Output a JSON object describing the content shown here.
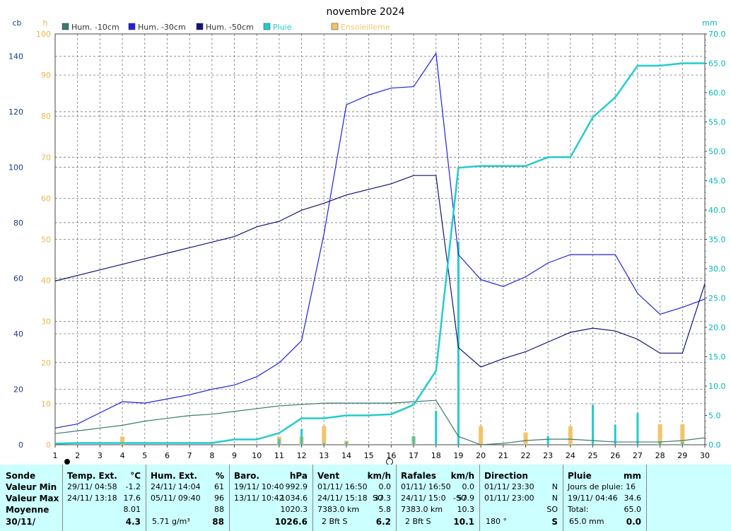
{
  "chart_data": {
    "type": "line",
    "title": "novembre 2024",
    "axes": {
      "left_outer": {
        "label": "cb",
        "min": 0,
        "max": 148,
        "ticks": [
          0,
          20,
          40,
          60,
          80,
          100,
          120,
          140
        ],
        "color": "#1a3a8a"
      },
      "left_inner": {
        "label": "h",
        "min": 0,
        "max": 100,
        "ticks": [
          0,
          10,
          20,
          30,
          40,
          50,
          60,
          70,
          80,
          90,
          100
        ],
        "color": "#e8b84a"
      },
      "right": {
        "label": "mm",
        "min": 0,
        "max": 70,
        "ticks": [
          0.0,
          5.0,
          10.0,
          15.0,
          20.0,
          25.0,
          30.0,
          35.0,
          40.0,
          45.0,
          50.0,
          55.0,
          60.0,
          65.0,
          70.0
        ],
        "color": "#00b8b8"
      },
      "x": {
        "min": 1,
        "max": 30,
        "ticks": [
          1,
          2,
          3,
          4,
          5,
          6,
          7,
          8,
          9,
          10,
          11,
          12,
          13,
          14,
          15,
          16,
          17,
          18,
          19,
          20,
          21,
          22,
          23,
          24,
          25,
          26,
          27,
          28,
          29,
          30
        ]
      }
    },
    "grid": true,
    "legend": [
      {
        "name": "Hum. -10cm",
        "color": "#3a7a70"
      },
      {
        "name": "Hum. -30cm",
        "color": "#2222dd"
      },
      {
        "name": "Hum. -50cm",
        "color": "#12127a"
      },
      {
        "name": "Pluie",
        "color": "#22cccc"
      },
      {
        "name": "Ensoleilleme",
        "color": "#f2c46a"
      }
    ],
    "series": [
      {
        "name": "Hum. -10cm",
        "axis": "left_outer",
        "color": "#3a7a70",
        "x": [
          1,
          2,
          3,
          4,
          5,
          6,
          7,
          8,
          9,
          10,
          11,
          12,
          13,
          14,
          15,
          16,
          17,
          18,
          19,
          20,
          21,
          22,
          23,
          24,
          25,
          26,
          27,
          28,
          29,
          30
        ],
        "values": [
          4,
          5,
          6,
          7,
          8.5,
          9.5,
          10.5,
          11,
          12,
          13,
          14,
          14.5,
          15,
          15,
          15,
          15,
          15.5,
          16,
          3,
          0,
          0.5,
          1.5,
          2,
          2,
          1.5,
          1,
          1,
          1,
          1.5,
          2.5
        ]
      },
      {
        "name": "Hum. -30cm",
        "axis": "left_outer",
        "color": "#2222dd",
        "x": [
          1,
          2,
          3,
          4,
          5,
          6,
          7,
          8,
          9,
          10,
          11,
          12,
          13,
          14,
          15,
          16,
          17,
          18,
          19,
          20,
          21,
          22,
          23,
          24,
          25,
          26,
          27,
          28,
          29,
          30
        ],
        "values": [
          6,
          7.5,
          11.5,
          15.5,
          15,
          16.5,
          18,
          20,
          21.5,
          24.5,
          29.5,
          37.5,
          76,
          122.5,
          126,
          128.5,
          129,
          141,
          68.5,
          59.5,
          57,
          60.5,
          65.5,
          68.5,
          68.5,
          68.5,
          54.5,
          47,
          49.5,
          52.5
        ]
      },
      {
        "name": "Hum. -50cm",
        "axis": "left_outer",
        "color": "#12127a",
        "x": [
          1,
          2,
          3,
          4,
          5,
          6,
          7,
          8,
          9,
          10,
          11,
          12,
          13,
          14,
          15,
          16,
          17,
          18,
          19,
          20,
          21,
          22,
          23,
          24,
          25,
          26,
          27,
          28,
          29,
          30
        ],
        "values": [
          59,
          61,
          63,
          65,
          67,
          69,
          71,
          73,
          75,
          78.5,
          80.5,
          84.5,
          87,
          90,
          92,
          94,
          97,
          97,
          35,
          28,
          31,
          33.5,
          37,
          40.5,
          42,
          41,
          38,
          33,
          33,
          58
        ]
      },
      {
        "name": "Pluie",
        "axis": "right",
        "color": "#22cccc",
        "type": "cumulative",
        "x": [
          1,
          2,
          3,
          4,
          5,
          6,
          7,
          8,
          9,
          10,
          11,
          12,
          13,
          14,
          15,
          16,
          17,
          18,
          19,
          20,
          21,
          22,
          23,
          24,
          25,
          26,
          27,
          28,
          29,
          30
        ],
        "values": [
          0.2,
          0.3,
          0.3,
          0.3,
          0.3,
          0.3,
          0.3,
          0.3,
          0.9,
          0.9,
          2,
          4.5,
          4.5,
          5,
          5,
          5.2,
          6.8,
          12.6,
          47.2,
          47.5,
          47.5,
          47.5,
          49,
          49,
          55.8,
          59.2,
          64.6,
          64.6,
          65,
          65
        ]
      },
      {
        "name": "Pluie",
        "axis": "right",
        "color": "#22cccc",
        "type": "daily_bars",
        "x": [
          11,
          12,
          13,
          14,
          17,
          18,
          19,
          23,
          25,
          26,
          27,
          28,
          29
        ],
        "values": [
          1,
          2.7,
          0.3,
          0.5,
          1.5,
          5.8,
          34.6,
          1.5,
          6.8,
          3.4,
          5.4,
          0.4,
          0.4
        ]
      },
      {
        "name": "Ensoleilleme",
        "axis": "left_inner",
        "color": "#f2c46a",
        "type": "bars",
        "x": [
          4,
          11,
          12,
          13,
          14,
          17,
          20,
          22,
          24,
          28,
          29
        ],
        "values": [
          2,
          2,
          2,
          4.5,
          1,
          2,
          4.5,
          3,
          4.5,
          5,
          5
        ]
      }
    ]
  },
  "stats": {
    "rows": [
      "Sonde",
      "Valeur Min",
      "Valeur Max",
      "Moyenne",
      "30/11/"
    ],
    "temp": {
      "title": "Temp. Ext.",
      "unit": "°C",
      "min": [
        "29/11/  04:58",
        "-1.2"
      ],
      "max": [
        "24/11/  13:18",
        "17.6"
      ],
      "avg": "8.01",
      "current": "4.3"
    },
    "hum": {
      "title": "Hum. Ext.",
      "unit": "%",
      "min": [
        "24/11/  14:04",
        "61"
      ],
      "max": [
        "05/11/  09:40",
        "96"
      ],
      "avg": "88",
      "abs": "5.71 g/m³",
      "current": "88"
    },
    "baro": {
      "title": "Baro.",
      "unit": "hPa",
      "min": [
        "19/11/  10:40",
        "992.9"
      ],
      "max": [
        "13/11/  10:42",
        "1034.6"
      ],
      "avg": "1020.3",
      "current": "1026.6"
    },
    "vent": {
      "title": "Vent",
      "unit": "km/h",
      "min": [
        "01/11/  16:50",
        "0.0"
      ],
      "max": [
        "24/11/  15:18",
        "SO",
        "37.3"
      ],
      "avg": [
        "7383.0 km",
        "5.8"
      ],
      "current": [
        "2 Bft S",
        "6.2"
      ]
    },
    "rafales": {
      "title": "Rafales",
      "unit": "km/h",
      "min": [
        "01/11/  16:50",
        "0.0"
      ],
      "max": [
        "24/11/  15:0",
        "-SO",
        "57.9"
      ],
      "avg": [
        "7383.0 km",
        "10.3"
      ],
      "current": [
        "2 Bft S",
        "10.1"
      ]
    },
    "direction": {
      "title": "Direction",
      "min": [
        "01/11/  23:30",
        "N"
      ],
      "max": [
        "01/11/  23:00",
        "N"
      ],
      "avg": "SO",
      "current": [
        "180 °",
        "S"
      ]
    },
    "pluie": {
      "title": "Pluie",
      "unit": "mm",
      "row1": "Jours de pluie: 16",
      "max": [
        "19/11/  04:46",
        "34.6"
      ],
      "total_label": "Total:",
      "total": "65.0",
      "current": [
        "65.0 mm",
        "0.0"
      ]
    }
  }
}
